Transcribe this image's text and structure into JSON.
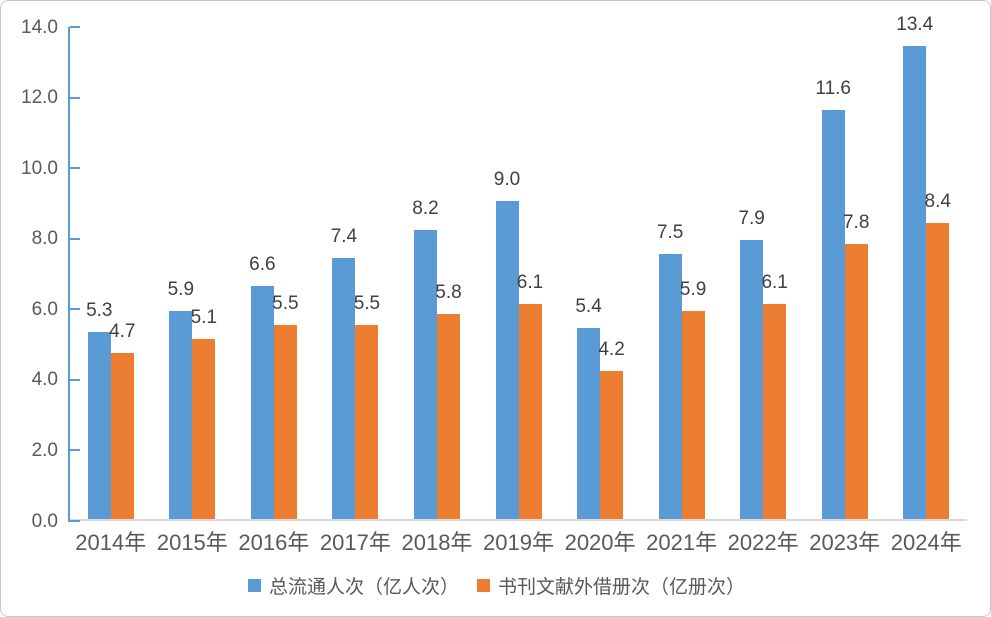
{
  "chart_data": {
    "type": "bar",
    "title": "",
    "categories": [
      "2014年",
      "2015年",
      "2016年",
      "2017年",
      "2018年",
      "2019年",
      "2020年",
      "2021年",
      "2022年",
      "2023年",
      "2024年"
    ],
    "series": [
      {
        "name": "总流通人次（亿人次）",
        "color": "#5B9BD5",
        "values": [
          5.3,
          5.9,
          6.6,
          7.4,
          8.2,
          9.0,
          5.4,
          7.5,
          7.9,
          11.6,
          13.4
        ]
      },
      {
        "name": "书刊文献外借册次（亿册次）",
        "color": "#ED7D31",
        "values": [
          4.7,
          5.1,
          5.5,
          5.5,
          5.8,
          6.1,
          4.2,
          5.9,
          6.1,
          7.8,
          8.4
        ]
      }
    ],
    "ylim": [
      0,
      14
    ],
    "ytick_step": 2,
    "ytick_labels": [
      "0.0",
      "2.0",
      "4.0",
      "6.0",
      "8.0",
      "10.0",
      "12.0",
      "14.0"
    ],
    "grid": false,
    "legend_position": "bottom",
    "data_labels": true
  },
  "colors": {
    "axis_line": "#5B9BD5",
    "baseline": "#D9D9D9",
    "axis_text": "#595959",
    "data_label": "#404040",
    "border": "#C9C9C9",
    "background": "#FFFFFF"
  }
}
